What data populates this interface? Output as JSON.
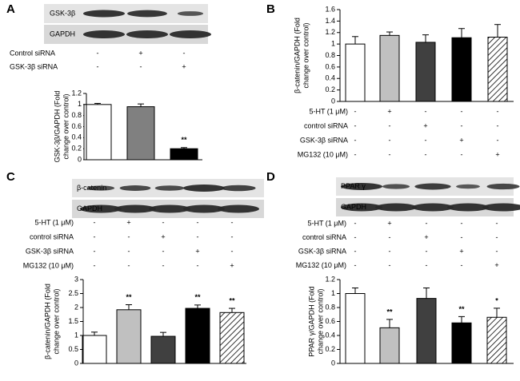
{
  "chart_data": [
    {
      "type": "bar",
      "ylabel": [
        "GSK-3β/GAPDH (Fold",
        "change over control)"
      ],
      "ylim": [
        0,
        1.2
      ],
      "yticks": [
        0,
        0.2,
        0.4,
        0.6,
        0.8,
        1,
        1.2
      ],
      "values": [
        1.0,
        0.96,
        0.2
      ],
      "errors": [
        0.02,
        0.05,
        0.02
      ],
      "significance": [
        null,
        null,
        "**"
      ],
      "colors": [
        "#ffffff",
        "#808080",
        "#000000"
      ],
      "hatched": [
        false,
        false,
        false
      ]
    },
    {
      "type": "bar",
      "ylabel": [
        "β-catenin/GAPDH (Fold",
        "change over control)"
      ],
      "ylim": [
        0,
        1.6
      ],
      "yticks": [
        0,
        0.2,
        0.4,
        0.6,
        0.8,
        1,
        1.2,
        1.4,
        1.6
      ],
      "values": [
        1.0,
        1.15,
        1.03,
        1.11,
        1.12
      ],
      "errors": [
        0.13,
        0.06,
        0.13,
        0.16,
        0.22
      ],
      "significance": [
        null,
        null,
        null,
        null,
        null
      ],
      "colors": [
        "#ffffff",
        "#c0c0c0",
        "#404040",
        "#000000",
        "#ffffff"
      ],
      "hatched": [
        false,
        false,
        false,
        false,
        true
      ]
    },
    {
      "type": "bar",
      "ylabel": [
        "β-catenin/GAPDH (Fold",
        "change over control)"
      ],
      "ylim": [
        0,
        3
      ],
      "yticks": [
        0,
        0.5,
        1,
        1.5,
        2,
        2.5,
        3
      ],
      "values": [
        1.0,
        1.92,
        0.97,
        1.97,
        1.82
      ],
      "errors": [
        0.12,
        0.18,
        0.14,
        0.12,
        0.15
      ],
      "significance": [
        null,
        "**",
        null,
        "**",
        "**"
      ],
      "colors": [
        "#ffffff",
        "#c0c0c0",
        "#404040",
        "#000000",
        "#ffffff"
      ],
      "hatched": [
        false,
        false,
        false,
        false,
        true
      ]
    },
    {
      "type": "bar",
      "ylabel": [
        "PPAR γ/GAPDH (Fold",
        "change over control)"
      ],
      "ylim": [
        0,
        1.2
      ],
      "yticks": [
        0,
        0.2,
        0.4,
        0.6,
        0.8,
        1,
        1.2
      ],
      "values": [
        1.0,
        0.51,
        0.93,
        0.58,
        0.66
      ],
      "errors": [
        0.08,
        0.12,
        0.15,
        0.09,
        0.13
      ],
      "significance": [
        null,
        "**",
        null,
        "**",
        "*"
      ],
      "colors": [
        "#ffffff",
        "#c0c0c0",
        "#404040",
        "#000000",
        "#ffffff"
      ],
      "hatched": [
        false,
        false,
        false,
        false,
        true
      ]
    }
  ],
  "panels": [
    {
      "letter": "A",
      "blots": [
        "GSK-3β",
        "GAPDH"
      ],
      "treatments": [
        {
          "name": "Control siRNA",
          "signs": [
            "-",
            "+",
            "-"
          ]
        },
        {
          "name": "GSK-3β siRNA",
          "signs": [
            "-",
            "-",
            "+"
          ]
        }
      ]
    },
    {
      "letter": "B",
      "treatments": [
        {
          "name": "5-HT (1 μM)",
          "signs": [
            "-",
            "+",
            "-",
            "-",
            "-"
          ]
        },
        {
          "name": "control siRNA",
          "signs": [
            "-",
            "-",
            "+",
            "-",
            "-"
          ]
        },
        {
          "name": "GSK-3β siRNA",
          "signs": [
            "-",
            "-",
            "-",
            "+",
            "-"
          ]
        },
        {
          "name": "MG132 (10 μM)",
          "signs": [
            "-",
            "-",
            "-",
            "-",
            "+"
          ]
        }
      ]
    },
    {
      "letter": "C",
      "blots": [
        "β-catenin",
        "GAPDH"
      ],
      "treatments": [
        {
          "name": "5-HT (1 μM)",
          "signs": [
            "-",
            "+",
            "-",
            "-",
            "-"
          ]
        },
        {
          "name": "control siRNA",
          "signs": [
            "-",
            "-",
            "+",
            "-",
            "-"
          ]
        },
        {
          "name": "GSK-3β siRNA",
          "signs": [
            "-",
            "-",
            "-",
            "+",
            "-"
          ]
        },
        {
          "name": "MG132 (10 μM)",
          "signs": [
            "-",
            "-",
            "-",
            "-",
            "+"
          ]
        }
      ]
    },
    {
      "letter": "D",
      "blots": [
        "PPAR γ",
        "GAPDH"
      ],
      "treatments": [
        {
          "name": "5-HT (1 μM)",
          "signs": [
            "-",
            "+",
            "-",
            "-",
            "-"
          ]
        },
        {
          "name": "control siRNA",
          "signs": [
            "-",
            "-",
            "+",
            "-",
            "-"
          ]
        },
        {
          "name": "GSK-3β siRNA",
          "signs": [
            "-",
            "-",
            "-",
            "+",
            "-"
          ]
        },
        {
          "name": "MG132 (10 μM)",
          "signs": [
            "-",
            "-",
            "-",
            "-",
            "+"
          ]
        }
      ]
    }
  ]
}
